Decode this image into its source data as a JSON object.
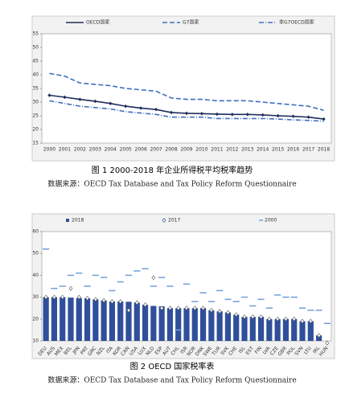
{
  "chart_data": [
    {
      "type": "line",
      "title": "图 1 2000-2018 年企业所得税平均税率趋势",
      "source": "数据来源：OECD Tax Database and Tax Policy Reform Questionnaire",
      "categories": [
        "2000",
        "2001",
        "2002",
        "2003",
        "2004",
        "2005",
        "2006",
        "2007",
        "2008",
        "2009",
        "2010",
        "2011",
        "2012",
        "2013",
        "2014",
        "2015",
        "2016",
        "2017",
        "2018"
      ],
      "series": [
        {
          "name": "OECD国家",
          "color": "#1f2d5a",
          "style": "solid",
          "values": [
            32.5,
            31.8,
            31,
            30.3,
            29.5,
            28.5,
            27.8,
            27.3,
            26.2,
            25.9,
            25.8,
            25.6,
            25.5,
            25.5,
            25.3,
            25,
            24.8,
            24.5,
            23.8
          ]
        },
        {
          "name": "G7国家",
          "color": "#3f6fc0",
          "style": "dash",
          "values": [
            40.5,
            39.5,
            37,
            36.5,
            36,
            35,
            34.5,
            34,
            31.5,
            31,
            31,
            30.5,
            30.5,
            30.5,
            30,
            29.5,
            29,
            28.5,
            27
          ]
        },
        {
          "name": "非G7OECD国家",
          "color": "#3f6fc0",
          "style": "dashdot",
          "values": [
            30.5,
            29.5,
            28.5,
            28,
            27.5,
            26.5,
            26,
            25.5,
            24.5,
            24.5,
            24.5,
            24,
            24,
            24,
            24,
            23.8,
            23.5,
            23.3,
            23
          ]
        }
      ],
      "ylim": [
        15,
        55
      ],
      "yticks": [
        15,
        20,
        25,
        30,
        35,
        40,
        45,
        50,
        55
      ]
    },
    {
      "type": "bar",
      "title": "图 2 OECD 国家税率表",
      "source": "数据来源：OECD Tax Database and Tax Policy Reform Questionnaire",
      "categories": [
        "DEU",
        "AUS",
        "MEX",
        "BEL",
        "JPN",
        "PRT",
        "GRC",
        "NZL",
        "ITA",
        "KOR",
        "CAN",
        "USA",
        "LUX",
        "NLD",
        "ESP",
        "AUT",
        "CHL",
        "ISR",
        "NOR",
        "DNK",
        "SWE",
        "TUR",
        "SVK",
        "CHE",
        "ISL",
        "EST",
        "FIN",
        "LVA",
        "CZE",
        "GBR",
        "POL",
        "SVN",
        "LTU",
        "IRL",
        "HUN"
      ],
      "series": [
        {
          "name": "2018",
          "color": "#2f4f9a",
          "values": [
            30,
            30,
            30,
            29.8,
            29.6,
            29.5,
            29,
            28.5,
            28,
            28,
            27.9,
            27.5,
            26.5,
            26,
            25.8,
            25,
            25,
            25,
            25,
            25,
            24,
            23.5,
            23,
            22,
            21,
            21,
            21,
            20,
            20,
            20,
            20,
            19,
            19,
            12.5,
            9
          ]
        },
        {
          "name": "2017",
          "color": "#2f4f9a",
          "values": [
            30,
            30,
            30,
            34,
            30,
            29.5,
            29,
            28.5,
            28,
            28,
            24,
            27.5,
            26.5,
            38.9,
            25,
            25,
            25,
            25,
            25,
            25,
            24,
            23.5,
            23,
            22,
            21,
            21,
            21,
            20,
            20,
            20,
            20,
            19,
            19,
            12.5,
            9
          ]
        },
        {
          "name": "2000",
          "color": "#6f9fd8",
          "values": [
            52,
            34,
            35,
            40,
            41,
            35,
            40,
            39,
            33,
            37,
            40,
            42,
            43,
            35,
            39,
            35,
            15,
            36,
            28,
            32,
            28,
            33,
            29,
            28,
            30,
            26,
            29,
            25,
            31,
            30,
            30,
            25,
            24,
            24,
            18
          ]
        }
      ],
      "ylim": [
        10,
        60
      ],
      "yticks": [
        10,
        20,
        30,
        40,
        50,
        60
      ]
    }
  ]
}
